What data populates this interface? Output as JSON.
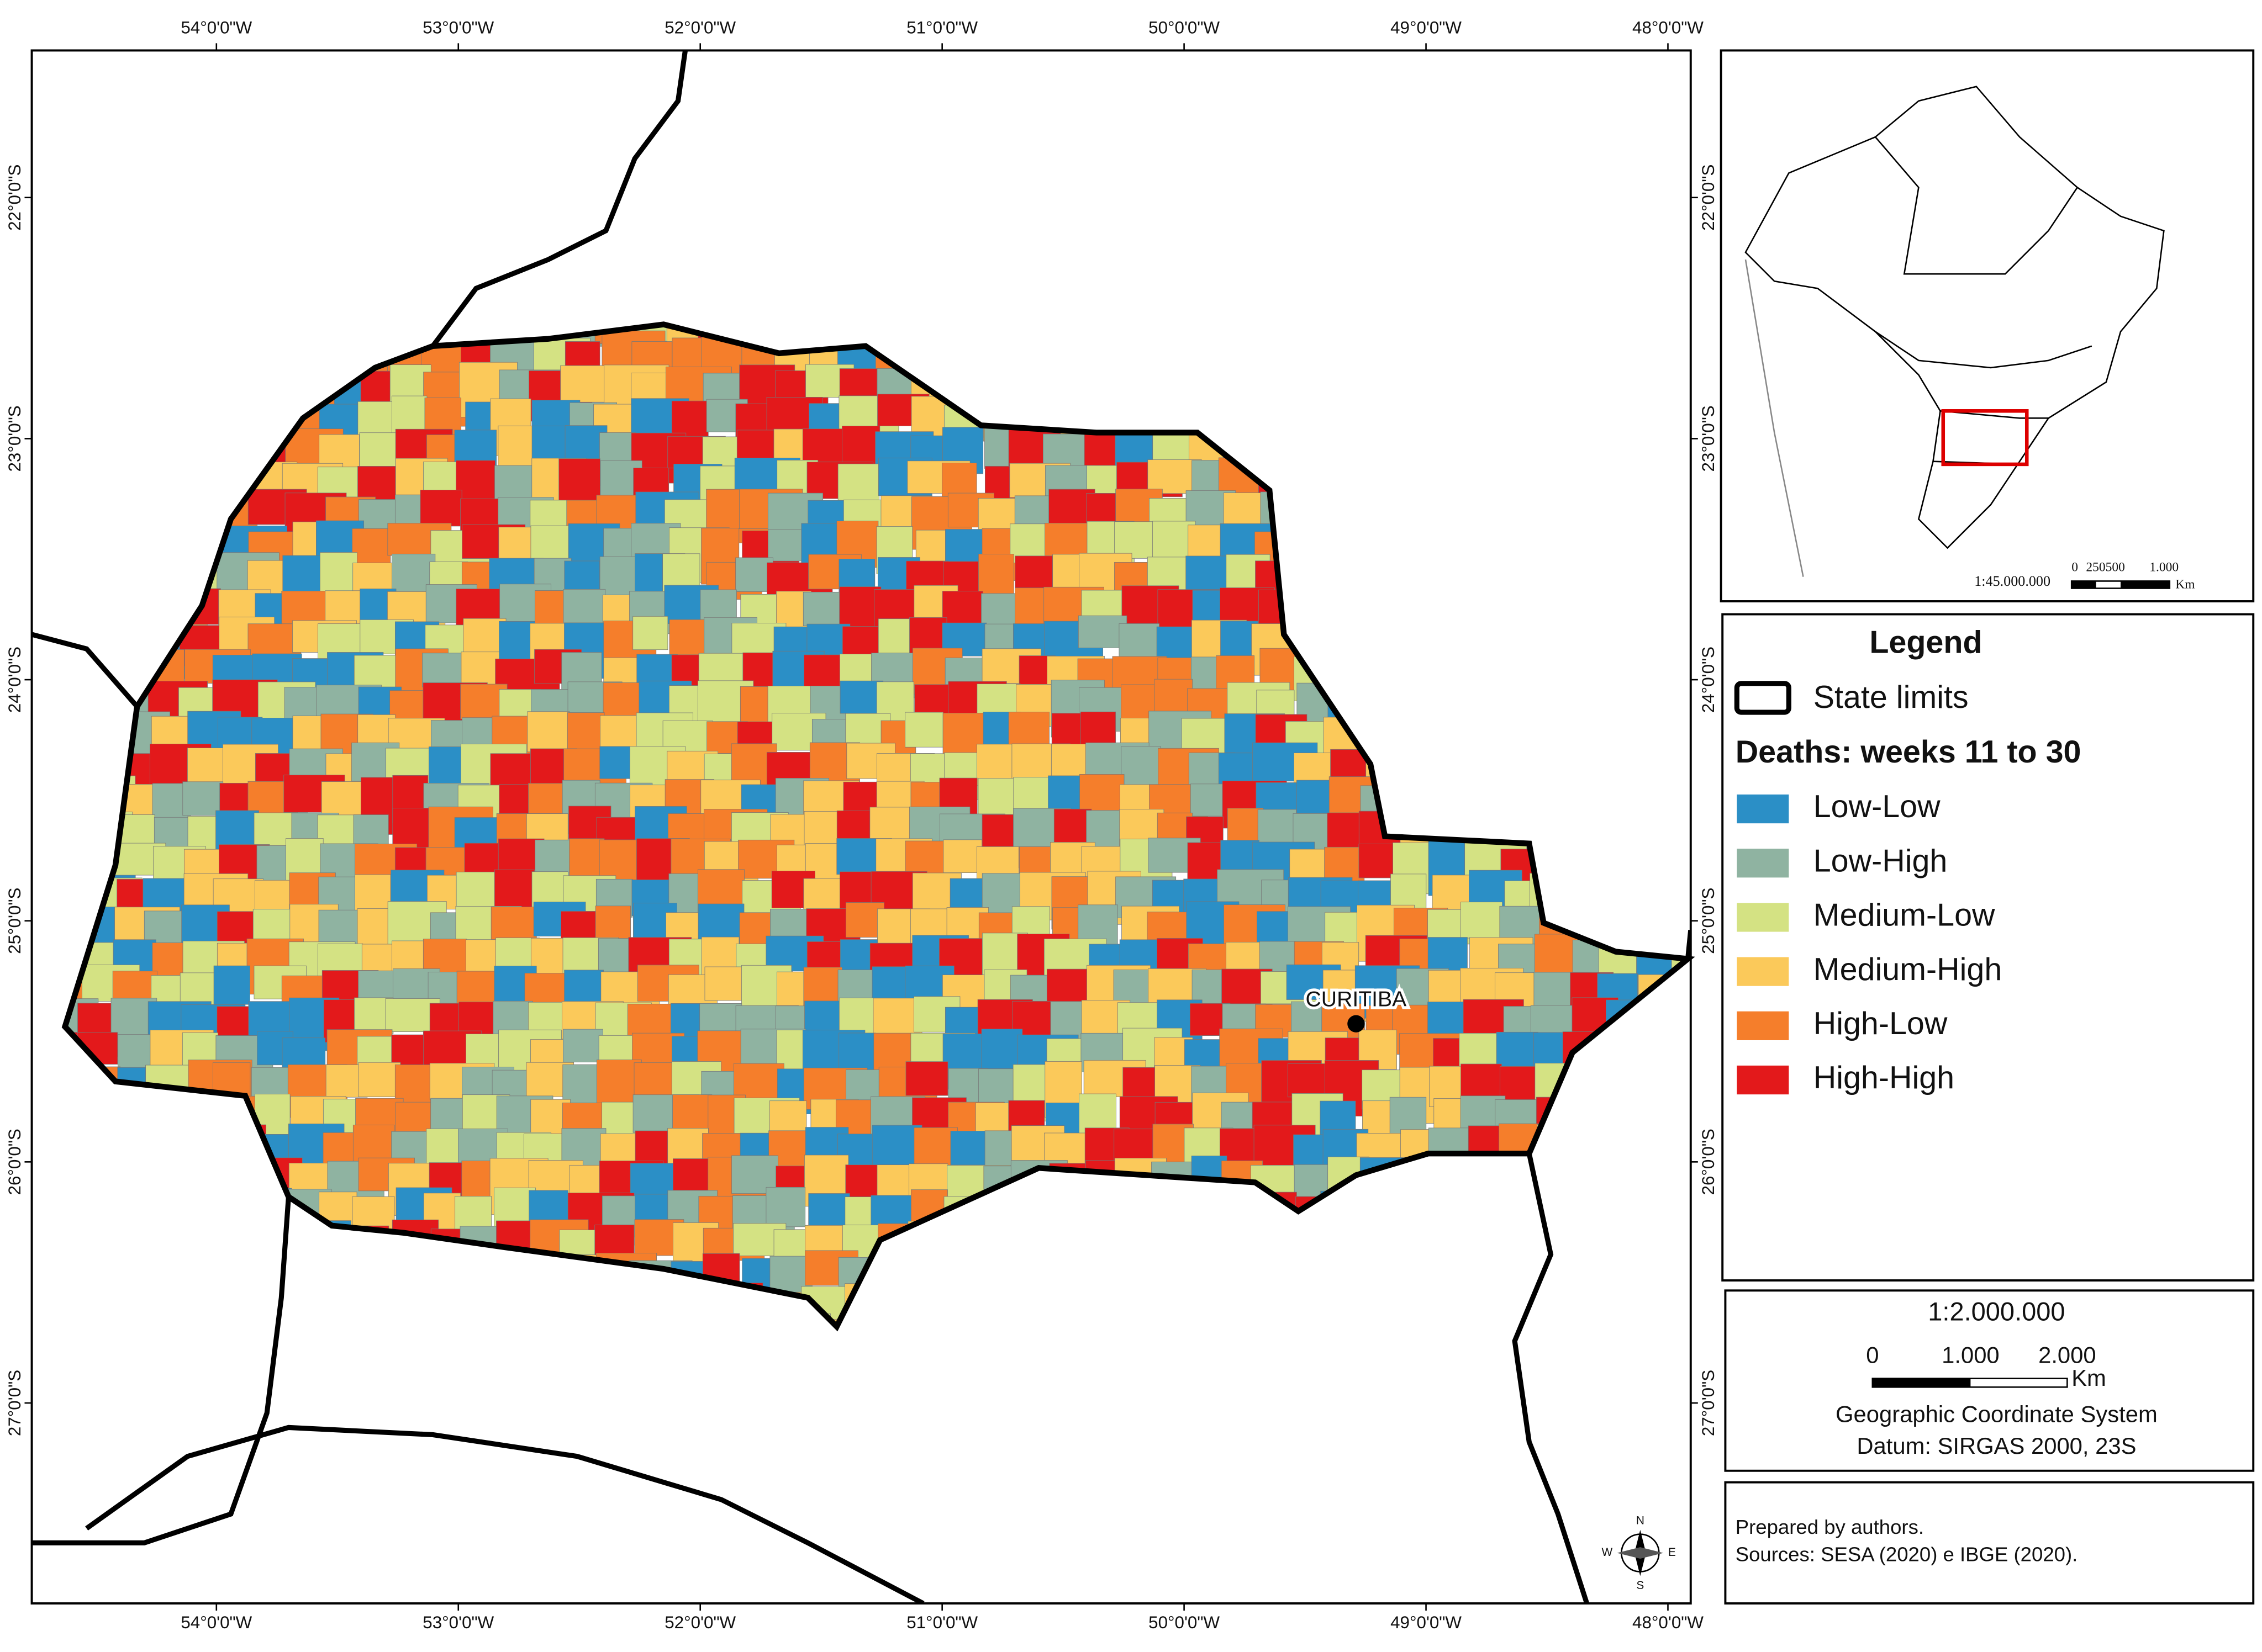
{
  "map": {
    "lon_ticks": [
      {
        "value": -54,
        "label": "54°0'0\"W"
      },
      {
        "value": -53,
        "label": "53°0'0\"W"
      },
      {
        "value": -52,
        "label": "52°0'0\"W"
      },
      {
        "value": -51,
        "label": "51°0'0\"W"
      },
      {
        "value": -50,
        "label": "50°0'0\"W"
      },
      {
        "value": -49,
        "label": "49°0'0\"W"
      },
      {
        "value": -48,
        "label": "48°0'0\"W"
      }
    ],
    "lat_ticks": [
      {
        "value": -22,
        "label": "22°0'0\"S"
      },
      {
        "value": -23,
        "label": "23°0'0\"S"
      },
      {
        "value": -24,
        "label": "24°0'0\"S"
      },
      {
        "value": -25,
        "label": "25°0'0\"S"
      },
      {
        "value": -26,
        "label": "26°0'0\"S"
      },
      {
        "value": -27,
        "label": "27°0'0\"S"
      }
    ],
    "city": "CURITIBA",
    "legend": {
      "title": "Legend",
      "state_limits": "State limits",
      "subtitle": "Deaths: weeks 11 to 30",
      "classes": [
        {
          "name": "Low-Low",
          "color": "#2b8fc6"
        },
        {
          "name": "Low-High",
          "color": "#8fb3a1"
        },
        {
          "name": "Medium-Low",
          "color": "#d4e283"
        },
        {
          "name": "Medium-High",
          "color": "#fbc95a"
        },
        {
          "name": "High-Low",
          "color": "#f57e2b"
        },
        {
          "name": "High-High",
          "color": "#e3191b"
        }
      ]
    },
    "scale": {
      "ratio": "1:2.000.000",
      "bar_labels": [
        "0",
        "1.000",
        "2.000"
      ],
      "unit": "Km",
      "crs": "Geographic Coordinate System",
      "datum": "Datum: SIRGAS 2000, 23S"
    },
    "inset": {
      "ratio": "1:45.000.000",
      "bar_labels": [
        "0",
        "250500",
        "1.000"
      ],
      "unit": "Km"
    },
    "compass": [
      "N",
      "E",
      "S",
      "W"
    ],
    "credits": [
      "Prepared by authors.",
      "Sources: SESA (2020) e IBGE (2020)."
    ]
  }
}
